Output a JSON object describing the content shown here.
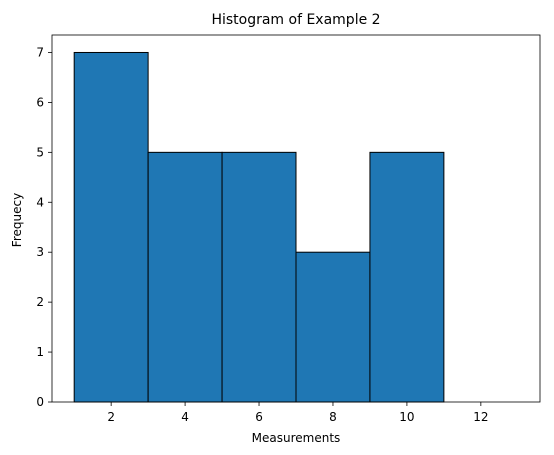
{
  "chart_data": {
    "type": "histogram",
    "title": "Histogram of Example 2",
    "xlabel": "Measurements",
    "ylabel": "Frequecy",
    "bins": [
      {
        "start": 1,
        "end": 3,
        "count": 7
      },
      {
        "start": 3,
        "end": 5,
        "count": 5
      },
      {
        "start": 5,
        "end": 7,
        "count": 5
      },
      {
        "start": 7,
        "end": 9,
        "count": 3
      },
      {
        "start": 9,
        "end": 11,
        "count": 5
      },
      {
        "start": 11,
        "end": 13,
        "count": 0
      }
    ],
    "xlim": [
      0.4,
      13.6
    ],
    "ylim": [
      0,
      7.35
    ],
    "xticks": [
      2,
      4,
      6,
      8,
      10,
      12
    ],
    "yticks": [
      0,
      1,
      2,
      3,
      4,
      5,
      6,
      7
    ],
    "bar_color": "#1f77b4",
    "edge_color": "#000000",
    "grid": false
  }
}
